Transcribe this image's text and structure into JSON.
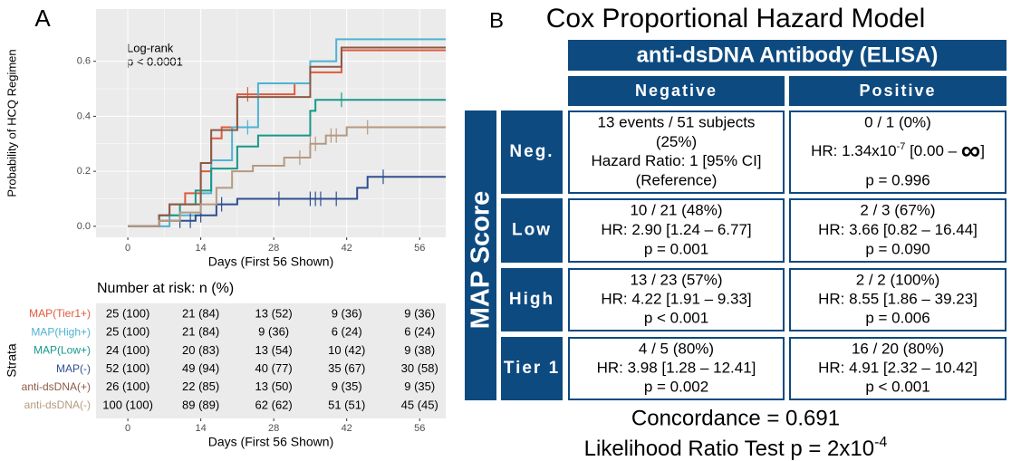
{
  "panel_a_label": "A",
  "chart_data": {
    "type": "step",
    "annotation": [
      "Log-rank",
      "p < 0.0001"
    ],
    "xlabel": "Days (First 56 Shown)",
    "ylabel": "Probability of HCQ Regimen",
    "xlim": [
      -6.1,
      61
    ],
    "xticks": [
      0,
      14,
      28,
      42,
      56
    ],
    "ylim": [
      -0.04,
      0.79
    ],
    "yticks": [
      {
        "value": 0,
        "label": "0.0"
      },
      0.2,
      0.4,
      0.6
    ],
    "grid": true,
    "series": [
      {
        "name": "MAP(Tier1+)",
        "color": "#e05a3a",
        "x": [
          0,
          6,
          8,
          11,
          14,
          16,
          18,
          21,
          32,
          35,
          41,
          61
        ],
        "values": [
          0,
          0.04,
          0.08,
          0.12,
          0.2,
          0.32,
          0.36,
          0.48,
          0.52,
          0.56,
          0.64,
          0.64
        ],
        "censor": [
          23
        ]
      },
      {
        "name": "MAP(High+)",
        "color": "#4eb3d3",
        "x": [
          0,
          8,
          14,
          16,
          20,
          25,
          35,
          40,
          61
        ],
        "values": [
          0,
          0.04,
          0.12,
          0.24,
          0.36,
          0.52,
          0.6,
          0.68,
          0.68
        ],
        "censor": [
          23
        ]
      },
      {
        "name": "MAP(Low+)",
        "color": "#16998a",
        "x": [
          0,
          6,
          10,
          13,
          16,
          21,
          25,
          35,
          36,
          61
        ],
        "values": [
          0,
          0.04,
          0.08,
          0.13,
          0.21,
          0.29,
          0.33,
          0.42,
          0.46,
          0.46
        ],
        "censor": [
          41
        ]
      },
      {
        "name": "MAP(-)",
        "color": "#2e4f8f",
        "x": [
          0,
          6,
          13,
          17,
          21,
          44,
          46,
          61
        ],
        "values": [
          0,
          0.02,
          0.04,
          0.08,
          0.1,
          0.14,
          0.18,
          0.18
        ],
        "censor": [
          10,
          12,
          14,
          18,
          29,
          35,
          36,
          37,
          40,
          49
        ]
      },
      {
        "name": "anti-dsDNA(+)",
        "color": "#8b5a45",
        "x": [
          0,
          6,
          8,
          14,
          16,
          21,
          35,
          41,
          61
        ],
        "values": [
          0,
          0.04,
          0.08,
          0.23,
          0.35,
          0.47,
          0.58,
          0.65,
          0.65
        ],
        "censor": []
      },
      {
        "name": "anti-dsDNA(-)",
        "color": "#b59a80",
        "x": [
          0,
          6,
          10,
          14,
          17,
          20,
          24,
          30,
          35,
          38,
          42,
          61
        ],
        "values": [
          0,
          0.02,
          0.05,
          0.08,
          0.14,
          0.2,
          0.22,
          0.25,
          0.3,
          0.33,
          0.36,
          0.36
        ],
        "censor": [
          33,
          35,
          36,
          39,
          40,
          46
        ]
      }
    ]
  },
  "risk_table": {
    "title": "Number at risk: n (%)",
    "ylabel": "Strata",
    "rows": [
      [
        "25 (100)",
        "21 (84)",
        "13 (52)",
        "9 (36)",
        "9 (36)"
      ],
      [
        "25 (100)",
        "21 (84)",
        "9 (36)",
        "6 (24)",
        "6 (24)"
      ],
      [
        "24 (100)",
        "20 (83)",
        "13 (54)",
        "10 (42)",
        "9 (38)"
      ],
      [
        "52 (100)",
        "49 (94)",
        "40 (77)",
        "35 (67)",
        "30 (58)"
      ],
      [
        "26 (100)",
        "22 (85)",
        "13 (50)",
        "9 (35)",
        "9 (35)"
      ],
      [
        "100 (100)",
        "89 (89)",
        "62 (62)",
        "51 (51)",
        "45 (45)"
      ]
    ]
  },
  "panel_b": {
    "label": "B",
    "title": "Cox Proportional Hazard Model",
    "column_group": "anti-dsDNA Antibody (ELISA)",
    "columns": [
      "Negative",
      "Positive"
    ],
    "row_group": "MAP Score",
    "rows": [
      {
        "label": "Neg.",
        "cells": [
          [
            "13 events / 51 subjects",
            "(25%)",
            "Hazard Ratio: 1 [95% CI]",
            "(Reference)"
          ],
          [
            "0 / 1 (0%)",
            [
              {
                "t": "HR: 1.34x10"
              },
              {
                "t": "-7",
                "sup": true
              },
              {
                "t": " [0.00 – "
              },
              {
                "t": "∞",
                "big": true
              },
              {
                "t": "]"
              }
            ],
            "p = 0.996"
          ]
        ]
      },
      {
        "label": "Low",
        "cells": [
          [
            "10 / 21 (48%)",
            "HR: 2.90 [1.24 – 6.77]",
            "p = 0.001"
          ],
          [
            "2 / 3 (67%)",
            "HR: 3.66 [0.82 – 16.44]",
            "p = 0.090"
          ]
        ]
      },
      {
        "label": "High",
        "cells": [
          [
            "13 / 23 (57%)",
            "HR: 4.22 [1.91 – 9.33]",
            "p < 0.001"
          ],
          [
            "2 / 2 (100%)",
            "HR: 8.55 [1.86 – 39.23]",
            "p = 0.006"
          ]
        ]
      },
      {
        "label": "Tier 1",
        "cells": [
          [
            "4 / 5 (80%)",
            "HR: 3.98 [1.28 – 12.41]",
            "p = 0.002"
          ],
          [
            "16 / 20 (80%)",
            "HR: 4.91 [2.32 – 10.42]",
            "p < 0.001"
          ]
        ]
      }
    ],
    "concordance": "Concordance = 0.691",
    "lrt": [
      {
        "t": "Likelihood Ratio Test p = 2x10"
      },
      {
        "t": "-4",
        "sup": true
      }
    ]
  }
}
